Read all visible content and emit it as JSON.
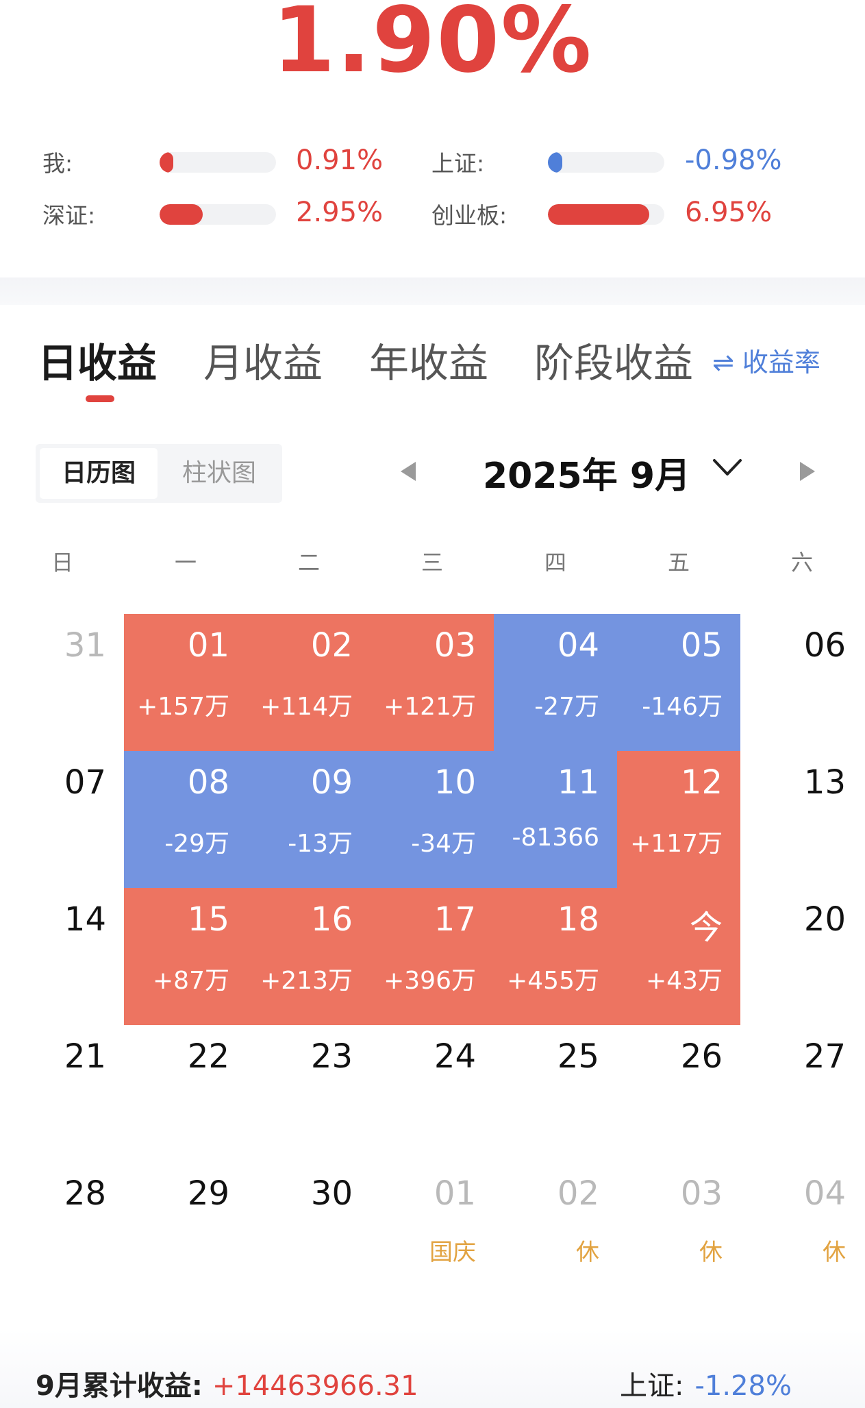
{
  "header": {
    "return_pct": "1.90%"
  },
  "comparisons": [
    {
      "label": "我:",
      "value": "0.91%",
      "fill": 0.91,
      "color": "#e0433e"
    },
    {
      "label": "深证:",
      "value": "2.95%",
      "fill": 2.95,
      "color": "#e0433e"
    },
    {
      "label": "上证:",
      "value": "-0.98%",
      "fill": 0.98,
      "color": "#4f7fd9"
    },
    {
      "label": "创业板:",
      "value": "6.95%",
      "fill": 6.95,
      "color": "#e0433e"
    }
  ],
  "tabs": [
    "日收益",
    "月收益",
    "年收益",
    "阶段收益"
  ],
  "active_tab": 0,
  "rate_toggle": "⇌ 收益率",
  "view_toggle": {
    "calendar": "日历图",
    "bar": "柱状图"
  },
  "month_title": "2025年 9月",
  "weekdays": [
    "日",
    "一",
    "二",
    "三",
    "四",
    "五",
    "六"
  ],
  "calendar": [
    [
      {
        "num": "31",
        "style": "gray"
      },
      {
        "num": "01",
        "amt": "+157万",
        "style": "red"
      },
      {
        "num": "02",
        "amt": "+114万",
        "style": "red"
      },
      {
        "num": "03",
        "amt": "+121万",
        "style": "red"
      },
      {
        "num": "04",
        "amt": "-27万",
        "style": "blue"
      },
      {
        "num": "05",
        "amt": "-146万",
        "style": "blue"
      },
      {
        "num": "06",
        "style": "plain"
      }
    ],
    [
      {
        "num": "07",
        "style": "plain"
      },
      {
        "num": "08",
        "amt": "-29万",
        "style": "blue"
      },
      {
        "num": "09",
        "amt": "-13万",
        "style": "blue"
      },
      {
        "num": "10",
        "amt": "-34万",
        "style": "blue"
      },
      {
        "num": "11",
        "amt": "-81366",
        "style": "blue"
      },
      {
        "num": "12",
        "amt": "+117万",
        "style": "red"
      },
      {
        "num": "13",
        "style": "plain"
      }
    ],
    [
      {
        "num": "14",
        "style": "plain"
      },
      {
        "num": "15",
        "amt": "+87万",
        "style": "red"
      },
      {
        "num": "16",
        "amt": "+213万",
        "style": "red"
      },
      {
        "num": "17",
        "amt": "+396万",
        "style": "red"
      },
      {
        "num": "18",
        "amt": "+455万",
        "style": "red"
      },
      {
        "num": "今",
        "amt": "+43万",
        "style": "red"
      },
      {
        "num": "20",
        "style": "plain"
      }
    ],
    [
      {
        "num": "21",
        "style": "plain"
      },
      {
        "num": "22",
        "style": "plain"
      },
      {
        "num": "23",
        "style": "plain"
      },
      {
        "num": "24",
        "style": "plain"
      },
      {
        "num": "25",
        "style": "plain"
      },
      {
        "num": "26",
        "style": "plain"
      },
      {
        "num": "27",
        "style": "plain"
      }
    ],
    [
      {
        "num": "28",
        "style": "plain"
      },
      {
        "num": "29",
        "style": "plain"
      },
      {
        "num": "30",
        "style": "plain"
      },
      {
        "num": "01",
        "holiday": "国庆",
        "style": "gray"
      },
      {
        "num": "02",
        "holiday": "休",
        "style": "gray"
      },
      {
        "num": "03",
        "holiday": "休",
        "style": "gray"
      },
      {
        "num": "04",
        "holiday": "休",
        "style": "gray"
      }
    ]
  ],
  "footer": {
    "monthly_label": "9月累计收益:",
    "monthly_value": "+14463966.31",
    "index_label": "上证:",
    "index_value": "-1.28%"
  },
  "colors": {
    "gain": "#e0433e",
    "loss": "#4f7fd9",
    "gain_cell": "#ed7461",
    "loss_cell": "#7494e0",
    "holiday": "#e2a341"
  }
}
